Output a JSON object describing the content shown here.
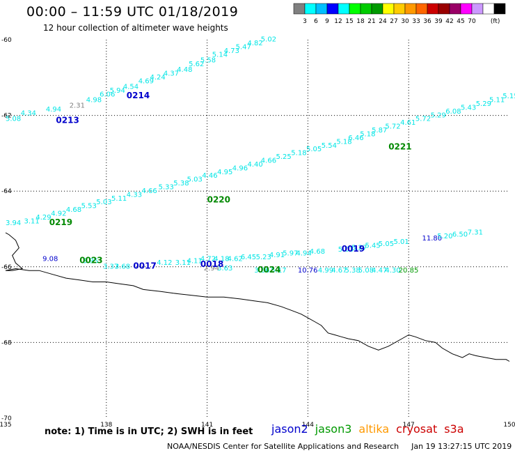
{
  "header": {
    "title": "00:00 – 11:59 UTC 01/18/2019",
    "subtitle": "12 hour collection of altimeter wave heights"
  },
  "legend": {
    "colors": [
      "#808080",
      "#00ffff",
      "#00bfff",
      "#0000ff",
      "#00ffff",
      "#00ff00",
      "#00cc00",
      "#009900",
      "#ffff00",
      "#ffcc00",
      "#ff9900",
      "#ff6600",
      "#cc0000",
      "#990000",
      "#990066",
      "#ff00ff",
      "#cc99ff",
      "#ffffff",
      "#000000"
    ],
    "labels": [
      "3",
      "6",
      "9",
      "12",
      "15",
      "18",
      "21",
      "24",
      "27",
      "30",
      "33",
      "36",
      "39",
      "42",
      "45",
      "70",
      "(ft)"
    ]
  },
  "chart_data": {
    "type": "scatter",
    "title": "00:00 – 11:59 UTC 01/18/2019",
    "subtitle": "12 hour collection of altimeter wave heights",
    "xlim": [
      135,
      150
    ],
    "ylim": [
      -70,
      -60
    ],
    "x_ticks": [
      "135",
      "138",
      "141",
      "144",
      "147",
      "150"
    ],
    "y_ticks": [
      "-60",
      "-62",
      "-64",
      "-66",
      "-68",
      "-70"
    ],
    "grid": true,
    "passes": [
      {
        "id": "0214",
        "satellite": "jason2",
        "lon": 138.6,
        "lat": -61.55
      },
      {
        "id": "0213",
        "satellite": "jason2",
        "lon": 136.5,
        "lat": -62.2
      },
      {
        "id": "0221",
        "satellite": "jason3",
        "lon": 146.4,
        "lat": -62.9
      },
      {
        "id": "0220",
        "satellite": "jason3",
        "lon": 141.0,
        "lat": -64.3
      },
      {
        "id": "0219",
        "satellite": "jason3",
        "lon": 136.3,
        "lat": -64.9
      },
      {
        "id": "0019",
        "satellite": "jason2",
        "lon": 145.0,
        "lat": -65.6
      },
      {
        "id": "0023",
        "satellite": "jason3",
        "lon": 137.2,
        "lat": -65.9
      },
      {
        "id": "0017",
        "satellite": "jason2",
        "lon": 138.8,
        "lat": -66.05
      },
      {
        "id": "0018",
        "satellite": "jason2",
        "lon": 140.8,
        "lat": -66.0
      },
      {
        "id": "0024",
        "satellite": "jason3",
        "lon": 142.5,
        "lat": -66.15
      }
    ],
    "tracks": [
      {
        "values": [
          "5.08",
          "4.34",
          "4.94",
          "2.31",
          "4.98",
          "6.06",
          "5.94",
          "4.54",
          "4.69",
          "4.24",
          "4.37",
          "4.48",
          "5.62",
          "5.58",
          "5.14",
          "4.73",
          "5.47",
          "4.82",
          "5.02"
        ],
        "lon": [
          135.0,
          135.45,
          136.2,
          136.9,
          137.4,
          137.8,
          138.1,
          138.5,
          138.95,
          139.3,
          139.7,
          140.1,
          140.45,
          140.8,
          141.15,
          141.5,
          141.85,
          142.2,
          142.6
        ],
        "lat": [
          -62.15,
          -62.0,
          -61.9,
          -61.8,
          -61.65,
          -61.5,
          -61.4,
          -61.3,
          -61.15,
          -61.05,
          -60.95,
          -60.85,
          -60.7,
          -60.6,
          -60.45,
          -60.35,
          -60.25,
          -60.15,
          -60.05
        ]
      },
      {
        "values": [
          "3.94",
          "3.11",
          "4.29",
          "4.92",
          "4.68",
          "5.53",
          "5.03",
          "5.11",
          "4.33",
          "4.66",
          "5.33",
          "5.38",
          "5.03",
          "4.46",
          "4.95",
          "4.96",
          "4.40",
          "4.66",
          "5.25",
          "5.18",
          "5.05",
          "5.54",
          "5.18",
          "6.46",
          "5.18",
          "5.87",
          "5.72",
          "4.61",
          "5.72",
          "5.29",
          "6.08",
          "5.43",
          "5.29",
          "5.11",
          "5.15"
        ],
        "lon": [
          135.0,
          135.55,
          135.9,
          136.35,
          136.8,
          137.25,
          137.7,
          138.15,
          138.6,
          139.05,
          139.55,
          140.0,
          140.4,
          140.85,
          141.3,
          141.75,
          142.2,
          142.6,
          143.05,
          143.5,
          143.95,
          144.4,
          144.85,
          145.2,
          145.55,
          145.9,
          146.3,
          146.75,
          147.2,
          147.65,
          148.1,
          148.55,
          149.0,
          149.4,
          149.8
        ],
        "lat": [
          -64.9,
          -64.85,
          -64.75,
          -64.65,
          -64.55,
          -64.45,
          -64.35,
          -64.25,
          -64.15,
          -64.05,
          -63.95,
          -63.85,
          -63.75,
          -63.65,
          -63.55,
          -63.45,
          -63.35,
          -63.25,
          -63.15,
          -63.05,
          -62.95,
          -62.85,
          -62.75,
          -62.65,
          -62.55,
          -62.45,
          -62.35,
          -62.25,
          -62.15,
          -62.05,
          -61.95,
          -61.85,
          -61.75,
          -61.65,
          -61.55
        ]
      },
      {
        "values": [
          "3.37",
          "3.68",
          "4.12",
          "3.11",
          "4.11",
          "4.72",
          "4.18",
          "4.62",
          "6.45",
          "5.23",
          "4.91",
          "5.97",
          "4.94",
          "4.68",
          "5.03",
          "5.27",
          "5.45",
          "5.05",
          "5.01",
          "11.80",
          "5.20",
          "6.50",
          "7.31"
        ],
        "lon": [
          137.9,
          138.25,
          139.5,
          140.05,
          140.4,
          140.8,
          141.2,
          141.6,
          142.0,
          142.45,
          142.85,
          143.25,
          143.65,
          144.05,
          144.9,
          145.3,
          145.7,
          146.1,
          146.55,
          147.4,
          147.85,
          148.3,
          148.75
        ],
        "lat": [
          -66.05,
          -66.05,
          -65.95,
          -65.95,
          -65.9,
          -65.85,
          -65.85,
          -65.85,
          -65.8,
          -65.8,
          -65.75,
          -65.7,
          -65.7,
          -65.65,
          -65.6,
          -65.55,
          -65.5,
          -65.45,
          -65.4,
          -65.3,
          -65.25,
          -65.2,
          -65.15
        ]
      },
      {
        "values": [
          "9.08",
          "3.95",
          "2.94",
          "3.63",
          "3.86",
          "5.17",
          "10.76",
          "4.99",
          "4.67",
          "5.38",
          "5.08",
          "4.47",
          "4.30",
          "20.85"
        ],
        "lon": [
          136.1,
          137.3,
          140.9,
          141.3,
          142.4,
          142.9,
          143.7,
          144.3,
          144.7,
          145.1,
          145.5,
          145.9,
          146.3,
          146.7
        ],
        "lat": [
          -65.85,
          -65.9,
          -66.1,
          -66.1,
          -66.15,
          -66.15,
          -66.15,
          -66.15,
          -66.15,
          -66.15,
          -66.15,
          -66.15,
          -66.15,
          -66.15
        ]
      }
    ],
    "coastline": {
      "lon": [
        135.0,
        135.1,
        135.3,
        135.4,
        135.2,
        135.3,
        135.5,
        135.2,
        135.0,
        135.3,
        135.7,
        136.0,
        136.4,
        136.8,
        137.2,
        137.6,
        138.0,
        138.4,
        138.8,
        139.1,
        139.6,
        140.0,
        140.5,
        141.0,
        141.5,
        142.0,
        142.4,
        142.8,
        143.2,
        143.5,
        143.8,
        144.0,
        144.2,
        144.4,
        144.5,
        144.6,
        144.8,
        145.0,
        145.2,
        145.5,
        145.8,
        146.1,
        146.4,
        146.8,
        147.0,
        147.2,
        147.5,
        147.8,
        148.0,
        148.3,
        148.6,
        148.8,
        149.0,
        149.3,
        149.6,
        149.9,
        150.0
      ],
      "lat": [
        -65.1,
        -65.15,
        -65.3,
        -65.5,
        -65.7,
        -65.9,
        -66.05,
        -66.1,
        -66.1,
        -66.05,
        -66.1,
        -66.1,
        -66.2,
        -66.3,
        -66.35,
        -66.4,
        -66.4,
        -66.45,
        -66.5,
        -66.6,
        -66.65,
        -66.7,
        -66.75,
        -66.8,
        -66.8,
        -66.85,
        -66.9,
        -66.95,
        -67.05,
        -67.15,
        -67.25,
        -67.35,
        -67.45,
        -67.55,
        -67.65,
        -67.75,
        -67.8,
        -67.85,
        -67.9,
        -67.95,
        -68.1,
        -68.2,
        -68.1,
        -67.9,
        -67.8,
        -67.85,
        -67.95,
        -68.0,
        -68.15,
        -68.3,
        -68.4,
        -68.3,
        -68.35,
        -68.4,
        -68.45,
        -68.45,
        -68.5
      ]
    }
  },
  "footer": {
    "note": "note:  1) Time is in UTC;  2) SWH is in feet",
    "satellites": [
      {
        "name": "jason2",
        "color": "#0000cc"
      },
      {
        "name": "jason3",
        "color": "#009900"
      },
      {
        "name": "altika",
        "color": "#ff9900"
      },
      {
        "name": "cryosat",
        "color": "#cc0000"
      },
      {
        "name": "s3a",
        "color": "#cc0000"
      }
    ],
    "credit": "NOAA/NESDIS Center for Satellite Applications and Research",
    "timestamp": "Jan 19 13:27:15 UTC 2019"
  }
}
